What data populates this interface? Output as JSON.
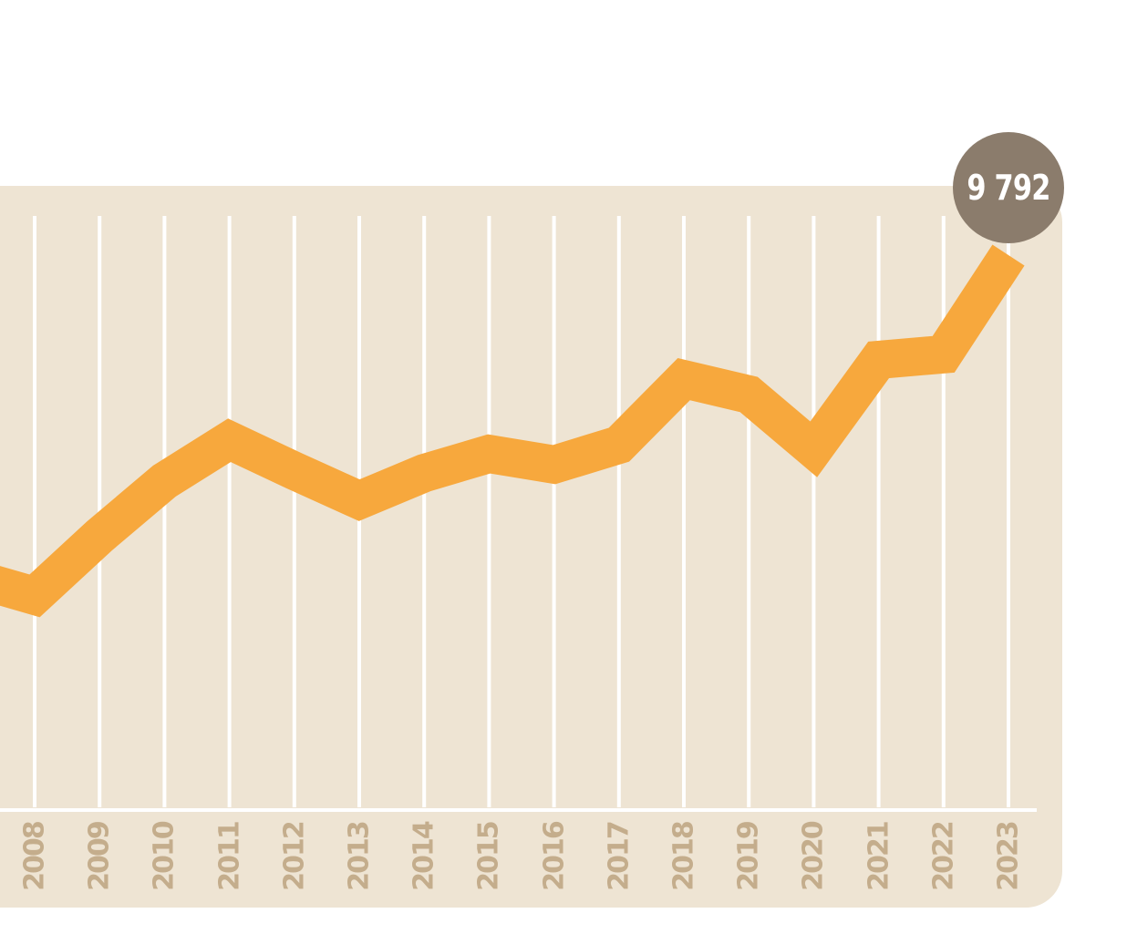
{
  "chart_data": {
    "type": "line",
    "title": "",
    "xlabel": "",
    "ylabel": "",
    "legend": "none",
    "grid": "vertical-gridlines-only",
    "categories": [
      "2008",
      "2009",
      "2010",
      "2011",
      "2012",
      "2013",
      "2014",
      "2015",
      "2016",
      "2017",
      "2018",
      "2019",
      "2020",
      "2021",
      "2022",
      "2023"
    ],
    "values": [
      3770,
      4830,
      5800,
      6520,
      5980,
      5460,
      5940,
      6280,
      6090,
      6440,
      7600,
      7330,
      6360,
      7940,
      8040,
      9792
    ],
    "lead_in_value": 4100,
    "end_label": {
      "category": "2023",
      "text": "9 792",
      "value": 9792
    },
    "colors": {
      "line": "#F7A83D",
      "plot_background": "#EEE4D3",
      "page_background": "#FFFFFF",
      "gridline": "#FFFFFF",
      "axis_line": "#FFFFFF",
      "tick_label": "#C4AD8C",
      "badge_fill": "#8B7C6C",
      "badge_text": "#FFFFFF"
    }
  }
}
